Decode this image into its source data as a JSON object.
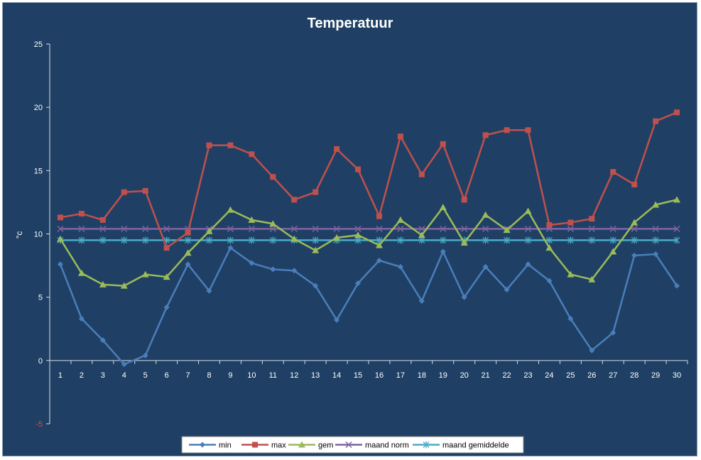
{
  "chart_data": {
    "type": "line",
    "title": "Temperatuur",
    "ylabel": "°c",
    "xlabel": "",
    "ylim": [
      -5,
      25
    ],
    "yticks": [
      -5,
      0,
      5,
      10,
      15,
      20,
      25
    ],
    "categories": [
      "1",
      "2",
      "3",
      "4",
      "5",
      "6",
      "7",
      "8",
      "9",
      "10",
      "11",
      "12",
      "13",
      "14",
      "15",
      "16",
      "17",
      "18",
      "19",
      "20",
      "21",
      "22",
      "23",
      "24",
      "25",
      "26",
      "27",
      "28",
      "29",
      "30"
    ],
    "legend_position": "bottom",
    "grid": false,
    "series": [
      {
        "name": "min",
        "color": "#4a7ebb",
        "marker": "diamond",
        "values": [
          7.6,
          3.3,
          1.6,
          -0.3,
          0.4,
          4.2,
          7.6,
          5.5,
          8.9,
          7.7,
          7.2,
          7.1,
          5.9,
          3.2,
          6.1,
          7.9,
          7.4,
          4.7,
          8.6,
          5.0,
          7.4,
          5.6,
          7.6,
          6.3,
          3.3,
          0.8,
          2.2,
          8.3,
          8.4,
          5.9
        ]
      },
      {
        "name": "max",
        "color": "#c0504d",
        "marker": "square",
        "values": [
          11.3,
          11.6,
          11.1,
          13.3,
          13.4,
          8.9,
          10.1,
          17.0,
          17.0,
          16.3,
          14.5,
          12.7,
          13.3,
          16.7,
          15.1,
          11.4,
          17.7,
          14.7,
          17.1,
          12.7,
          17.8,
          18.2,
          18.2,
          10.7,
          10.9,
          11.2,
          14.9,
          13.9,
          18.9,
          19.6
        ]
      },
      {
        "name": "gem",
        "color": "#9bbb59",
        "marker": "triangle",
        "values": [
          9.6,
          6.9,
          6.0,
          5.9,
          6.8,
          6.6,
          8.5,
          10.2,
          11.9,
          11.1,
          10.8,
          9.6,
          8.7,
          9.7,
          9.9,
          9.1,
          11.1,
          9.9,
          12.1,
          9.3,
          11.5,
          10.3,
          11.8,
          8.9,
          6.8,
          6.4,
          8.6,
          10.9,
          12.3,
          12.7
        ]
      },
      {
        "name": "maand norm",
        "color": "#8064a2",
        "marker": "x",
        "values": [
          10.4,
          10.4,
          10.4,
          10.4,
          10.4,
          10.4,
          10.4,
          10.4,
          10.4,
          10.4,
          10.4,
          10.4,
          10.4,
          10.4,
          10.4,
          10.4,
          10.4,
          10.4,
          10.4,
          10.4,
          10.4,
          10.4,
          10.4,
          10.4,
          10.4,
          10.4,
          10.4,
          10.4,
          10.4,
          10.4
        ]
      },
      {
        "name": "maand gemiddelde",
        "color": "#4bacc6",
        "marker": "star",
        "values": [
          9.5,
          9.5,
          9.5,
          9.5,
          9.5,
          9.5,
          9.5,
          9.5,
          9.5,
          9.5,
          9.5,
          9.5,
          9.5,
          9.5,
          9.5,
          9.5,
          9.5,
          9.5,
          9.5,
          9.5,
          9.5,
          9.5,
          9.5,
          9.5,
          9.5,
          9.5,
          9.5,
          9.5,
          9.5,
          9.5
        ]
      }
    ]
  }
}
